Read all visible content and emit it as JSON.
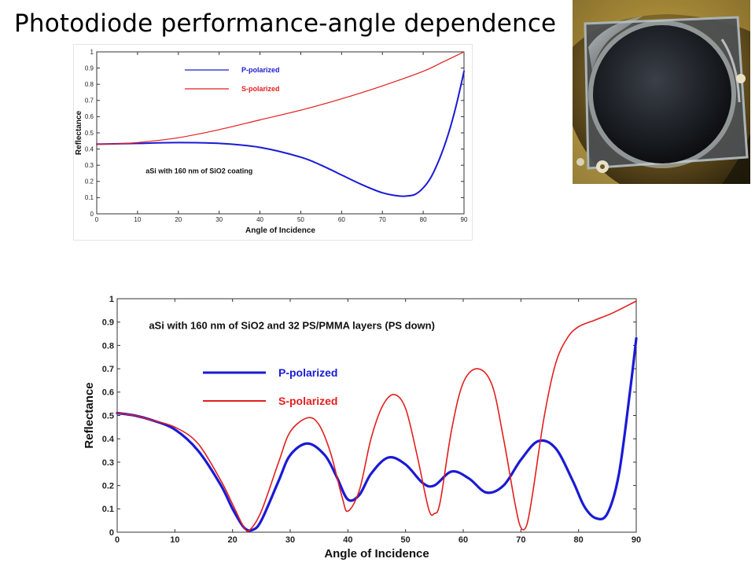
{
  "slide": {
    "title": "Photodiode performance-angle dependence"
  },
  "photo": {
    "icon": "photodiode-photo"
  },
  "colors": {
    "p": "#1a1ad6",
    "s": "#e31e1e"
  },
  "chart_data": [
    {
      "type": "line",
      "xlabel": "Angle of Incidence",
      "ylabel": "Reflectance",
      "xlim": [
        0,
        90
      ],
      "ylim": [
        0,
        1
      ],
      "xticks": [
        0,
        10,
        20,
        30,
        40,
        50,
        60,
        70,
        80,
        90
      ],
      "yticks": [
        0,
        0.1,
        0.2,
        0.3,
        0.4,
        0.5,
        0.6,
        0.7,
        0.8,
        0.9,
        1
      ],
      "annotation": "aSi with 160 nm of SiO2 coating",
      "grid": false,
      "legend_position": "top-left",
      "series": [
        {
          "name": "P-polarized",
          "x": [
            0,
            10,
            20,
            30,
            40,
            50,
            55,
            60,
            65,
            70,
            74,
            76,
            78,
            80,
            82,
            84,
            86,
            88,
            90
          ],
          "y": [
            0.43,
            0.435,
            0.44,
            0.435,
            0.41,
            0.35,
            0.3,
            0.24,
            0.18,
            0.13,
            0.11,
            0.11,
            0.12,
            0.16,
            0.23,
            0.34,
            0.48,
            0.66,
            0.88
          ]
        },
        {
          "name": "S-polarized",
          "x": [
            0,
            5,
            10,
            20,
            30,
            40,
            50,
            60,
            70,
            80,
            85,
            90
          ],
          "y": [
            0.43,
            0.432,
            0.44,
            0.47,
            0.52,
            0.58,
            0.64,
            0.71,
            0.79,
            0.88,
            0.94,
            1.0
          ]
        }
      ]
    },
    {
      "type": "line",
      "xlabel": "Angle of Incidence",
      "ylabel": "Reflectance",
      "xlim": [
        0,
        90
      ],
      "ylim": [
        0,
        1
      ],
      "xticks": [
        0,
        10,
        20,
        30,
        40,
        50,
        60,
        70,
        80,
        90
      ],
      "yticks": [
        0,
        0.1,
        0.2,
        0.3,
        0.4,
        0.5,
        0.6,
        0.7,
        0.8,
        0.9,
        1
      ],
      "annotation": "aSi with 160 nm of SiO2 and 32 PS/PMMA layers (PS down)",
      "grid": false,
      "legend_position": "top-left",
      "series": [
        {
          "name": "P-polarized",
          "x": [
            0,
            3,
            6,
            10,
            14,
            18,
            20,
            22,
            23.5,
            25,
            28,
            30,
            33,
            36,
            38,
            40,
            42,
            44,
            47,
            50,
            53,
            55,
            58,
            61,
            64,
            67,
            70,
            73,
            76,
            79,
            81,
            83,
            85,
            87,
            89,
            90
          ],
          "y": [
            0.51,
            0.5,
            0.48,
            0.44,
            0.35,
            0.2,
            0.1,
            0.02,
            0.01,
            0.05,
            0.22,
            0.33,
            0.38,
            0.33,
            0.24,
            0.14,
            0.16,
            0.25,
            0.32,
            0.29,
            0.21,
            0.2,
            0.26,
            0.23,
            0.17,
            0.2,
            0.31,
            0.39,
            0.36,
            0.22,
            0.11,
            0.06,
            0.08,
            0.25,
            0.62,
            0.83
          ]
        },
        {
          "name": "S-polarized",
          "x": [
            0,
            3,
            6,
            10,
            14,
            18,
            20,
            22,
            23,
            25,
            28,
            30,
            33,
            35,
            37,
            39,
            40,
            42,
            44,
            46,
            48,
            50,
            52,
            54,
            55,
            56,
            58,
            60,
            62.5,
            65,
            67,
            69,
            70,
            71,
            72,
            74,
            76,
            78,
            80,
            83,
            86,
            90
          ],
          "y": [
            0.51,
            0.5,
            0.48,
            0.45,
            0.38,
            0.22,
            0.12,
            0.02,
            0.01,
            0.09,
            0.3,
            0.43,
            0.49,
            0.46,
            0.34,
            0.15,
            0.09,
            0.18,
            0.4,
            0.54,
            0.59,
            0.53,
            0.33,
            0.1,
            0.08,
            0.13,
            0.44,
            0.64,
            0.7,
            0.63,
            0.4,
            0.12,
            0.02,
            0.03,
            0.16,
            0.49,
            0.72,
            0.83,
            0.88,
            0.91,
            0.94,
            0.99
          ]
        }
      ]
    }
  ]
}
